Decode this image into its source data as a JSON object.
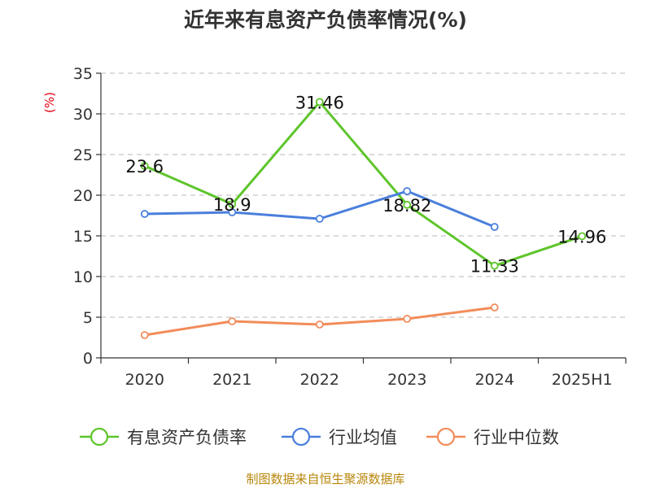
{
  "chart_data": {
    "type": "line",
    "title": "近年来有息资产负债率情况(%)",
    "ylabel": "(%)",
    "xlabel": "",
    "categories": [
      "2020",
      "2021",
      "2022",
      "2023",
      "2024",
      "2025H1"
    ],
    "ylim": [
      0,
      35
    ],
    "yticks": [
      0,
      5,
      10,
      15,
      20,
      25,
      30,
      35
    ],
    "grid": true,
    "legend_position": "bottom",
    "series": [
      {
        "name": "有息资产负债率",
        "color": "#5ec52b",
        "values": [
          23.6,
          18.9,
          31.46,
          18.82,
          11.33,
          14.96
        ],
        "labels": [
          "23.6",
          "18.9",
          "31.46",
          "18.82",
          "11.33",
          "14.96"
        ]
      },
      {
        "name": "行业均值",
        "color": "#4a7fdc",
        "values": [
          17.7,
          17.9,
          17.1,
          20.5,
          16.1,
          null
        ]
      },
      {
        "name": "行业中位数",
        "color": "#f28c5a",
        "values": [
          2.8,
          4.5,
          4.1,
          4.8,
          6.2,
          null
        ]
      }
    ],
    "source": "制图数据来自恒生聚源数据库"
  }
}
